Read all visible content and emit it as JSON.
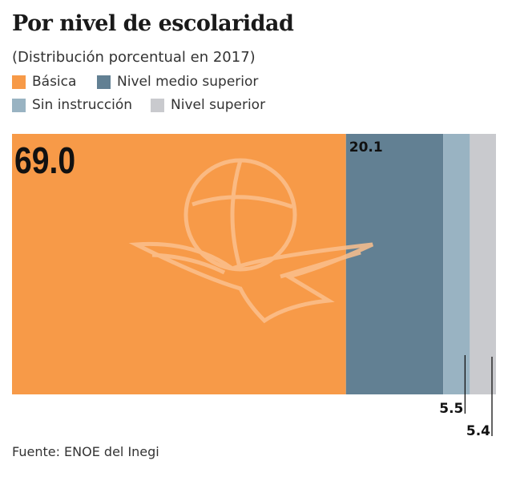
{
  "chart_data": {
    "type": "bar",
    "subtype": "100% stacked horizontal bar",
    "title": "Por nivel de escolaridad",
    "subtitle": "(Distribución porcentual en 2017)",
    "source": "Fuente: ENOE del Inegi",
    "legend_position": "top-left",
    "series": [
      {
        "name": "Básica",
        "value": 69.0,
        "label": "69.0",
        "color": "#F79A48"
      },
      {
        "name": "Nivel medio superior",
        "value": 20.1,
        "label": "20.1",
        "color": "#628093"
      },
      {
        "name": "Sin instrucción",
        "value": 5.5,
        "label": "5.5",
        "color": "#99B3C2"
      },
      {
        "name": "Nivel superior",
        "value": 5.4,
        "label": "5.4",
        "color": "#C9CACE"
      }
    ],
    "xlim": [
      0,
      100
    ],
    "grid": false,
    "watermark": "eagle-and-globe-logo"
  }
}
